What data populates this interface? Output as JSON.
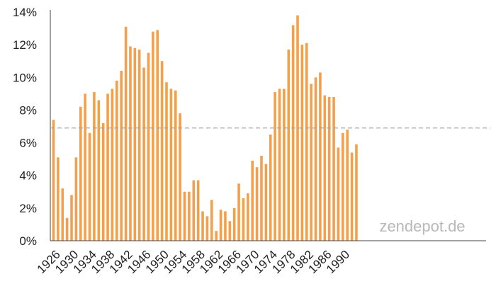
{
  "chart_data": {
    "type": "bar",
    "title": "",
    "xlabel": "",
    "ylabel": "",
    "ylim": [
      0,
      14
    ],
    "y_ticks": [
      0,
      2,
      4,
      6,
      8,
      10,
      12,
      14
    ],
    "y_tick_labels": [
      "0%",
      "2%",
      "4%",
      "6%",
      "8%",
      "10%",
      "12%",
      "14%"
    ],
    "x_tick_labels": [
      "1926",
      "1930",
      "1934",
      "1938",
      "1942",
      "1946",
      "1950",
      "1954",
      "1958",
      "1962",
      "1966",
      "1970",
      "1974",
      "1978",
      "1982",
      "1986",
      "1990"
    ],
    "grid": false,
    "bar_color": "#F4A04B",
    "reference_line": {
      "value": 6.9,
      "style": "dashed",
      "color": "#A0A0A0"
    },
    "categories": [
      1926,
      1927,
      1928,
      1929,
      1930,
      1931,
      1932,
      1933,
      1934,
      1935,
      1936,
      1937,
      1938,
      1939,
      1940,
      1941,
      1942,
      1943,
      1944,
      1945,
      1946,
      1947,
      1948,
      1949,
      1950,
      1951,
      1952,
      1953,
      1954,
      1955,
      1956,
      1957,
      1958,
      1959,
      1960,
      1961,
      1962,
      1963,
      1964,
      1965,
      1966,
      1967,
      1968,
      1969,
      1970,
      1971,
      1972,
      1973,
      1974,
      1975,
      1976,
      1977,
      1978,
      1979,
      1980,
      1981,
      1982,
      1983,
      1984,
      1985,
      1986,
      1987,
      1988,
      1989,
      1990,
      1991,
      1992,
      1993
    ],
    "values": [
      7.4,
      5.1,
      3.2,
      1.4,
      2.8,
      5.1,
      8.2,
      9.0,
      6.6,
      9.1,
      8.6,
      7.2,
      9.0,
      9.3,
      9.8,
      10.4,
      13.1,
      11.9,
      11.8,
      11.7,
      10.6,
      11.5,
      12.8,
      12.9,
      11.0,
      9.7,
      9.3,
      9.2,
      7.8,
      3.0,
      3.0,
      3.7,
      3.7,
      1.8,
      1.5,
      2.5,
      0.6,
      1.9,
      1.8,
      1.2,
      2.0,
      3.5,
      2.6,
      2.9,
      4.9,
      4.5,
      5.2,
      4.7,
      6.5,
      9.1,
      9.3,
      9.3,
      11.7,
      13.2,
      13.8,
      12.0,
      12.1,
      9.6,
      10.0,
      10.3,
      8.9,
      8.8,
      8.8,
      5.7,
      6.6,
      6.8,
      5.4,
      5.9
    ]
  },
  "watermark": {
    "text": "zendepot.de"
  }
}
